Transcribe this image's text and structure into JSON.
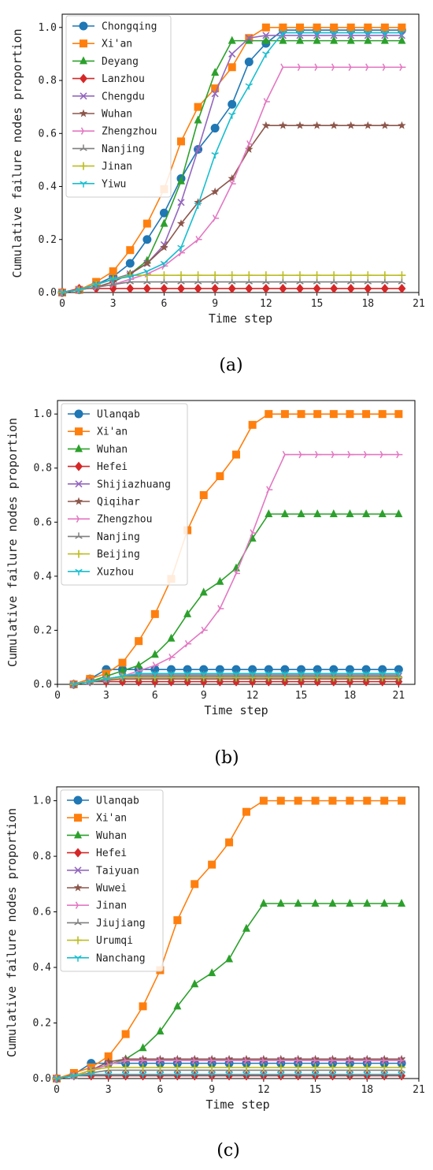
{
  "colors": {
    "c0": "#1f77b4",
    "c1": "#ff7f0e",
    "c2": "#2ca02c",
    "c3": "#d62728",
    "c4": "#9467bd",
    "c5": "#8c564b",
    "c6": "#e377c2",
    "c7": "#7f7f7f",
    "c8": "#bcbd22",
    "c9": "#17becf"
  },
  "markers": [
    "circle",
    "square",
    "triangle",
    "diamond",
    "x",
    "star",
    "tri-right",
    "tri-up",
    "plus",
    "tri-down"
  ],
  "chart_data": [
    {
      "type": "line",
      "caption": "(a)",
      "xlabel": "Time step",
      "ylabel": "Cumulative failure nodes proportion",
      "xlim": [
        0,
        21
      ],
      "ylim": [
        0,
        1.05
      ],
      "xticks": [
        "0",
        "3",
        "6",
        "9",
        "12",
        "15",
        "18",
        "21"
      ],
      "yticks": [
        "0.0",
        "0.2",
        "0.4",
        "0.6",
        "0.8",
        "1.0"
      ],
      "legend_position": "upper-left",
      "x": [
        0,
        1,
        2,
        3,
        4,
        5,
        6,
        7,
        8,
        9,
        10,
        11,
        12,
        13,
        14,
        15,
        16,
        17,
        18,
        19,
        20
      ],
      "series": [
        {
          "name": "Chongqing",
          "values": [
            0,
            0.01,
            0.03,
            0.06,
            0.11,
            0.2,
            0.3,
            0.43,
            0.54,
            0.62,
            0.71,
            0.87,
            0.94,
            0.99,
            0.99,
            0.99,
            0.99,
            0.99,
            0.99,
            0.99,
            0.99
          ]
        },
        {
          "name": "Xi'an",
          "values": [
            0,
            0.01,
            0.04,
            0.08,
            0.16,
            0.26,
            0.39,
            0.57,
            0.7,
            0.77,
            0.85,
            0.96,
            1.0,
            1.0,
            1.0,
            1.0,
            1.0,
            1.0,
            1.0,
            1.0,
            1.0
          ]
        },
        {
          "name": "Deyang",
          "values": [
            0,
            0.01,
            0.03,
            0.05,
            0.07,
            0.12,
            0.26,
            0.42,
            0.65,
            0.83,
            0.95,
            0.95,
            0.95,
            0.95,
            0.95,
            0.95,
            0.95,
            0.95,
            0.95,
            0.95,
            0.95
          ]
        },
        {
          "name": "Lanzhou",
          "values": [
            0,
            0.015,
            0.015,
            0.015,
            0.015,
            0.015,
            0.015,
            0.015,
            0.015,
            0.015,
            0.015,
            0.015,
            0.015,
            0.015,
            0.015,
            0.015,
            0.015,
            0.015,
            0.015,
            0.015,
            0.015
          ]
        },
        {
          "name": "Chengdu",
          "values": [
            0,
            0.01,
            0.03,
            0.05,
            0.07,
            0.11,
            0.18,
            0.34,
            0.54,
            0.75,
            0.9,
            0.96,
            0.97,
            0.97,
            0.97,
            0.97,
            0.97,
            0.97,
            0.97,
            0.97,
            0.97
          ]
        },
        {
          "name": "Wuhan",
          "values": [
            0,
            0.01,
            0.02,
            0.04,
            0.07,
            0.11,
            0.17,
            0.26,
            0.34,
            0.38,
            0.43,
            0.54,
            0.63,
            0.63,
            0.63,
            0.63,
            0.63,
            0.63,
            0.63,
            0.63,
            0.63
          ]
        },
        {
          "name": "Zhengzhou",
          "values": [
            0,
            0.01,
            0.02,
            0.03,
            0.05,
            0.07,
            0.1,
            0.15,
            0.2,
            0.28,
            0.41,
            0.56,
            0.72,
            0.85,
            0.85,
            0.85,
            0.85,
            0.85,
            0.85,
            0.85,
            0.85
          ]
        },
        {
          "name": "Nanjing",
          "values": [
            0,
            0.01,
            0.02,
            0.03,
            0.04,
            0.04,
            0.04,
            0.04,
            0.04,
            0.04,
            0.04,
            0.04,
            0.04,
            0.04,
            0.04,
            0.04,
            0.04,
            0.04,
            0.04,
            0.04,
            0.04
          ]
        },
        {
          "name": "Jinan",
          "values": [
            0,
            0.01,
            0.03,
            0.05,
            0.065,
            0.065,
            0.065,
            0.065,
            0.065,
            0.065,
            0.065,
            0.065,
            0.065,
            0.065,
            0.065,
            0.065,
            0.065,
            0.065,
            0.065,
            0.065,
            0.065
          ]
        },
        {
          "name": "Yiwu",
          "values": [
            0,
            0.01,
            0.03,
            0.05,
            0.06,
            0.08,
            0.11,
            0.17,
            0.33,
            0.52,
            0.67,
            0.78,
            0.9,
            0.98,
            0.98,
            0.98,
            0.98,
            0.98,
            0.98,
            0.98,
            0.98
          ]
        }
      ]
    },
    {
      "type": "line",
      "caption": "(b)",
      "xlabel": "Time step",
      "ylabel": "Cumulative failure nodes proportion",
      "xlim": [
        0,
        22
      ],
      "ylim": [
        0,
        1.05
      ],
      "xticks": [
        "0",
        "3",
        "6",
        "9",
        "12",
        "15",
        "18",
        "21"
      ],
      "yticks": [
        "0.0",
        "0.2",
        "0.4",
        "0.6",
        "0.8",
        "1.0"
      ],
      "legend_position": "upper-left",
      "x": [
        1,
        2,
        3,
        4,
        5,
        6,
        7,
        8,
        9,
        10,
        11,
        12,
        13,
        14,
        15,
        16,
        17,
        18,
        19,
        20,
        21
      ],
      "series": [
        {
          "name": "Ulanqab",
          "values": [
            0,
            0.02,
            0.055,
            0.055,
            0.055,
            0.055,
            0.055,
            0.055,
            0.055,
            0.055,
            0.055,
            0.055,
            0.055,
            0.055,
            0.055,
            0.055,
            0.055,
            0.055,
            0.055,
            0.055,
            0.055
          ]
        },
        {
          "name": "Xi'an",
          "values": [
            0,
            0.02,
            0.04,
            0.08,
            0.16,
            0.26,
            0.39,
            0.57,
            0.7,
            0.77,
            0.85,
            0.96,
            1.0,
            1.0,
            1.0,
            1.0,
            1.0,
            1.0,
            1.0,
            1.0,
            1.0
          ]
        },
        {
          "name": "Wuhan",
          "values": [
            0,
            0.01,
            0.03,
            0.05,
            0.07,
            0.11,
            0.17,
            0.26,
            0.34,
            0.38,
            0.43,
            0.54,
            0.63,
            0.63,
            0.63,
            0.63,
            0.63,
            0.63,
            0.63,
            0.63,
            0.63
          ]
        },
        {
          "name": "Hefei",
          "values": [
            0,
            0.01,
            0.01,
            0.01,
            0.01,
            0.01,
            0.01,
            0.01,
            0.01,
            0.01,
            0.01,
            0.01,
            0.01,
            0.01,
            0.01,
            0.01,
            0.01,
            0.01,
            0.01,
            0.01,
            0.01
          ]
        },
        {
          "name": "Shijiazhuang",
          "values": [
            0,
            0.01,
            0.02,
            0.03,
            0.03,
            0.03,
            0.03,
            0.03,
            0.03,
            0.03,
            0.03,
            0.03,
            0.03,
            0.03,
            0.03,
            0.03,
            0.03,
            0.03,
            0.03,
            0.03,
            0.03
          ]
        },
        {
          "name": "Qiqihar",
          "values": [
            0,
            0.01,
            0.015,
            0.02,
            0.02,
            0.02,
            0.02,
            0.02,
            0.02,
            0.02,
            0.02,
            0.02,
            0.02,
            0.02,
            0.02,
            0.02,
            0.02,
            0.02,
            0.02,
            0.02,
            0.02
          ]
        },
        {
          "name": "Zhengzhou",
          "values": [
            0,
            0.01,
            0.02,
            0.03,
            0.05,
            0.07,
            0.1,
            0.15,
            0.2,
            0.28,
            0.41,
            0.56,
            0.72,
            0.85,
            0.85,
            0.85,
            0.85,
            0.85,
            0.85,
            0.85,
            0.85
          ]
        },
        {
          "name": "Nanjing",
          "values": [
            0,
            0.01,
            0.02,
            0.03,
            0.035,
            0.035,
            0.035,
            0.035,
            0.035,
            0.035,
            0.035,
            0.035,
            0.035,
            0.035,
            0.035,
            0.035,
            0.035,
            0.035,
            0.035,
            0.035,
            0.035
          ]
        },
        {
          "name": "Beijing",
          "values": [
            0,
            0.01,
            0.02,
            0.025,
            0.025,
            0.025,
            0.025,
            0.025,
            0.025,
            0.025,
            0.025,
            0.025,
            0.025,
            0.025,
            0.025,
            0.025,
            0.025,
            0.025,
            0.025,
            0.025,
            0.025
          ]
        },
        {
          "name": "Xuzhou",
          "values": [
            0,
            0.01,
            0.02,
            0.03,
            0.04,
            0.04,
            0.04,
            0.04,
            0.04,
            0.04,
            0.04,
            0.04,
            0.04,
            0.04,
            0.04,
            0.04,
            0.04,
            0.04,
            0.04,
            0.04,
            0.04
          ]
        }
      ]
    },
    {
      "type": "line",
      "caption": "(c)",
      "xlabel": "Time step",
      "ylabel": "Cumulative failure nodes proportion",
      "xlim": [
        0,
        21
      ],
      "ylim": [
        0,
        1.05
      ],
      "xticks": [
        "0",
        "3",
        "6",
        "9",
        "12",
        "15",
        "18",
        "21"
      ],
      "yticks": [
        "0.0",
        "0.2",
        "0.4",
        "0.6",
        "0.8",
        "1.0"
      ],
      "legend_position": "upper-left",
      "x": [
        0,
        1,
        2,
        3,
        4,
        5,
        6,
        7,
        8,
        9,
        10,
        11,
        12,
        13,
        14,
        15,
        16,
        17,
        18,
        19,
        20
      ],
      "series": [
        {
          "name": "Ulanqab",
          "values": [
            0,
            0.015,
            0.055,
            0.055,
            0.055,
            0.055,
            0.055,
            0.055,
            0.055,
            0.055,
            0.055,
            0.055,
            0.055,
            0.055,
            0.055,
            0.055,
            0.055,
            0.055,
            0.055,
            0.055,
            0.055
          ]
        },
        {
          "name": "Xi'an",
          "values": [
            0,
            0.02,
            0.04,
            0.08,
            0.16,
            0.26,
            0.39,
            0.57,
            0.7,
            0.77,
            0.85,
            0.96,
            1.0,
            1.0,
            1.0,
            1.0,
            1.0,
            1.0,
            1.0,
            1.0,
            1.0
          ]
        },
        {
          "name": "Wuhan",
          "values": [
            0,
            0.01,
            0.03,
            0.05,
            0.07,
            0.11,
            0.17,
            0.26,
            0.34,
            0.38,
            0.43,
            0.54,
            0.63,
            0.63,
            0.63,
            0.63,
            0.63,
            0.63,
            0.63,
            0.63,
            0.63
          ]
        },
        {
          "name": "Hefei",
          "values": [
            0,
            0.01,
            0.01,
            0.01,
            0.01,
            0.01,
            0.01,
            0.01,
            0.01,
            0.01,
            0.01,
            0.01,
            0.01,
            0.01,
            0.01,
            0.01,
            0.01,
            0.01,
            0.01,
            0.01,
            0.01
          ]
        },
        {
          "name": "Taiyuan",
          "values": [
            0,
            0.01,
            0.03,
            0.05,
            0.065,
            0.065,
            0.065,
            0.065,
            0.065,
            0.065,
            0.065,
            0.065,
            0.065,
            0.065,
            0.065,
            0.065,
            0.065,
            0.065,
            0.065,
            0.065,
            0.065
          ]
        },
        {
          "name": "Wuwei",
          "values": [
            0,
            0.01,
            0.03,
            0.06,
            0.07,
            0.07,
            0.07,
            0.07,
            0.07,
            0.07,
            0.07,
            0.07,
            0.07,
            0.07,
            0.07,
            0.07,
            0.07,
            0.07,
            0.07,
            0.07,
            0.07
          ]
        },
        {
          "name": "Jinan",
          "values": [
            0,
            0.01,
            0.03,
            0.05,
            0.065,
            0.065,
            0.065,
            0.065,
            0.065,
            0.065,
            0.065,
            0.065,
            0.065,
            0.065,
            0.065,
            0.065,
            0.065,
            0.065,
            0.065,
            0.065,
            0.065
          ]
        },
        {
          "name": "Jiujiang",
          "values": [
            0,
            0.01,
            0.02,
            0.03,
            0.03,
            0.03,
            0.03,
            0.03,
            0.03,
            0.03,
            0.03,
            0.03,
            0.03,
            0.03,
            0.03,
            0.03,
            0.03,
            0.03,
            0.03,
            0.03,
            0.03
          ]
        },
        {
          "name": "Urumqi",
          "values": [
            0,
            0.01,
            0.03,
            0.04,
            0.04,
            0.04,
            0.04,
            0.04,
            0.04,
            0.04,
            0.04,
            0.04,
            0.04,
            0.04,
            0.04,
            0.04,
            0.04,
            0.04,
            0.04,
            0.04,
            0.04
          ]
        },
        {
          "name": "Nanchang",
          "values": [
            0,
            0.01,
            0.015,
            0.015,
            0.015,
            0.015,
            0.015,
            0.015,
            0.015,
            0.015,
            0.015,
            0.015,
            0.015,
            0.015,
            0.015,
            0.015,
            0.015,
            0.015,
            0.015,
            0.015,
            0.015
          ]
        }
      ]
    }
  ]
}
